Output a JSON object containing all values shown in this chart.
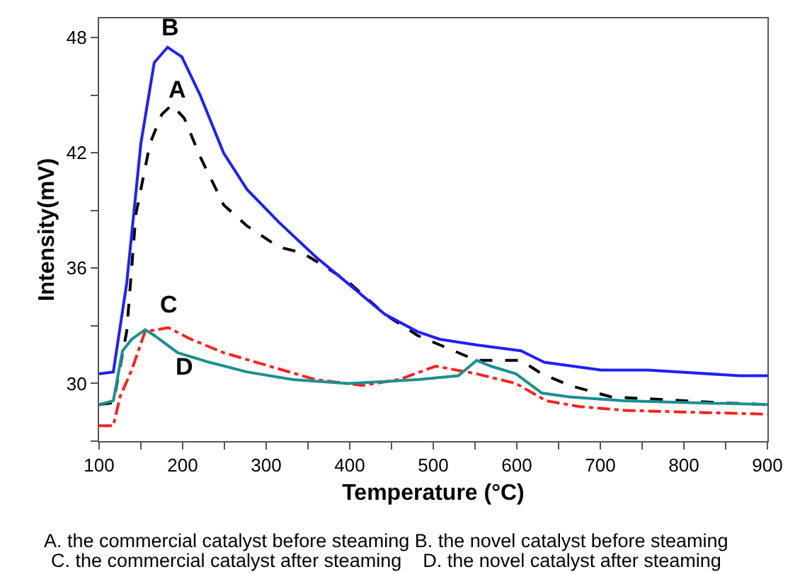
{
  "chart_data": {
    "type": "line",
    "xlabel": "Temperature (°C)",
    "ylabel": "Intensity(mV)",
    "xlim": [
      100,
      900
    ],
    "ylim": [
      27,
      49
    ],
    "xticks": [
      100,
      {
        "value": 150,
        "label": null
      },
      200,
      {
        "value": 250,
        "label": null
      },
      300,
      {
        "value": 350,
        "label": null
      },
      400,
      {
        "value": 450,
        "label": null
      },
      500,
      {
        "value": 550,
        "label": null
      },
      600,
      {
        "value": 650,
        "label": null
      },
      700,
      {
        "value": 750,
        "label": null
      },
      800,
      {
        "value": 850,
        "label": null
      },
      900
    ],
    "yticks": [
      {
        "value": 27,
        "label": null
      },
      30,
      {
        "value": 33,
        "label": null
      },
      36,
      {
        "value": 39,
        "label": null
      },
      42,
      {
        "value": 45,
        "label": null
      },
      48
    ],
    "legend": false,
    "marker": "none",
    "series": [
      {
        "name": "A",
        "color": "#000000",
        "line_style": "dashed",
        "x": [
          100,
          117,
          133,
          144,
          161,
          175,
          187,
          202,
          221,
          249,
          277,
          315,
          343,
          370,
          398,
          442,
          481,
          519,
          552,
          605,
          630,
          663,
          713,
          757,
          840,
          900
        ],
        "values": [
          28.9,
          29.0,
          32.7,
          38.8,
          42.5,
          44.0,
          44.5,
          43.8,
          41.8,
          39.3,
          38.2,
          37.1,
          36.8,
          36.1,
          35.3,
          33.6,
          32.5,
          31.8,
          31.2,
          31.2,
          30.5,
          29.9,
          29.3,
          29.2,
          29.0,
          28.9
        ]
      },
      {
        "name": "B",
        "color": "#1f1fff",
        "line_style": "solid",
        "x": [
          100,
          117,
          133,
          150,
          166,
          182,
          199,
          221,
          249,
          277,
          315,
          359,
          398,
          442,
          481,
          508,
          552,
          605,
          633,
          701,
          757,
          867,
          900
        ],
        "values": [
          30.5,
          30.6,
          35.2,
          42.5,
          46.7,
          47.5,
          47.0,
          45.0,
          42.0,
          40.1,
          38.4,
          36.6,
          35.2,
          33.6,
          32.7,
          32.3,
          32.0,
          31.7,
          31.1,
          30.7,
          30.7,
          30.4,
          30.4
        ]
      },
      {
        "name": "C",
        "color": "#ff2020",
        "line_style": "dashdot",
        "x": [
          100,
          117,
          125,
          139,
          155,
          183,
          210,
          249,
          304,
          359,
          415,
          459,
          503,
          552,
          599,
          635,
          674,
          729,
          812,
          900
        ],
        "values": [
          27.8,
          27.8,
          29.3,
          30.7,
          32.7,
          32.9,
          32.3,
          31.6,
          30.9,
          30.2,
          29.9,
          30.2,
          30.9,
          30.5,
          30.0,
          29.1,
          28.8,
          28.6,
          28.5,
          28.4
        ]
      },
      {
        "name": "D",
        "color": "#1a9090",
        "line_style": "solid",
        "x": [
          100,
          117,
          128,
          139,
          155,
          166,
          194,
          232,
          277,
          332,
          398,
          442,
          481,
          530,
          552,
          569,
          599,
          630,
          663,
          729,
          812,
          900
        ],
        "values": [
          28.9,
          29.1,
          31.7,
          32.3,
          32.8,
          32.5,
          31.6,
          31.1,
          30.6,
          30.2,
          30.0,
          30.1,
          30.2,
          30.4,
          31.2,
          30.9,
          30.5,
          29.5,
          29.3,
          29.1,
          29.0,
          28.9
        ]
      }
    ],
    "annotations": [
      "A. the commercial catalyst before steaming B. the novel catalyst before steaming",
      "C. the commercial catalyst after steaming    D. the novel catalyst after steaming"
    ]
  }
}
